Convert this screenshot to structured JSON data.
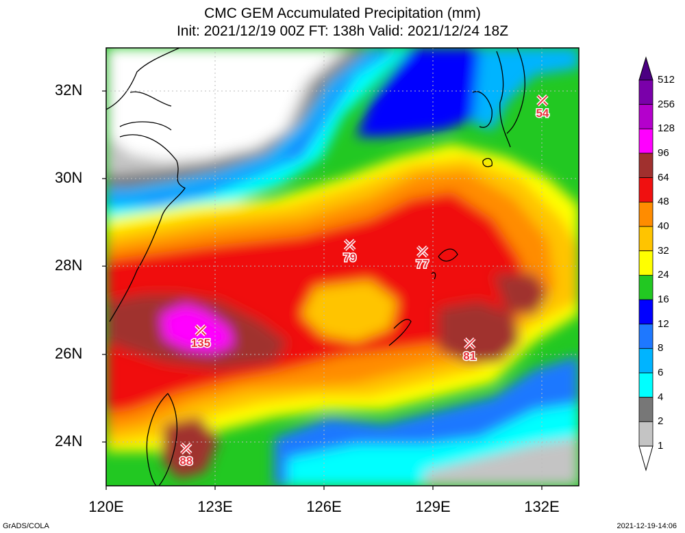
{
  "title_line1": "CMC GEM Accumulated Precipitation (mm)",
  "title_line2": "Init: 2021/12/19 00Z  FT: 138h  Valid: 2021/12/24 18Z",
  "lat_labels": [
    "32N",
    "30N",
    "28N",
    "26N",
    "24N"
  ],
  "lat_values": [
    32,
    30,
    28,
    26,
    24
  ],
  "lon_labels": [
    "120E",
    "123E",
    "126E",
    "129E",
    "132E"
  ],
  "lon_values": [
    120,
    123,
    126,
    129,
    132
  ],
  "extent": {
    "lon": [
      120,
      133
    ],
    "lat": [
      23,
      33
    ]
  },
  "colorbar": {
    "levels": [
      "512",
      "256",
      "128",
      "96",
      "64",
      "48",
      "40",
      "32",
      "24",
      "16",
      "12",
      "8",
      "6",
      "4",
      "2",
      "1"
    ],
    "colors": [
      "#4b0082",
      "#7a00aa",
      "#b400cc",
      "#ff00ff",
      "#a0302e",
      "#f01010",
      "#ff8c00",
      "#ffc400",
      "#ffff00",
      "#22c822",
      "#0000ff",
      "#1e78ff",
      "#00b4ff",
      "#00ffff",
      "#777777",
      "#c4c4c4",
      "#ffffff"
    ]
  },
  "markers": [
    {
      "label": "135",
      "lon": 122.6,
      "lat": 26.55
    },
    {
      "label": "79",
      "lon": 126.7,
      "lat": 28.5
    },
    {
      "label": "77",
      "lon": 128.7,
      "lat": 28.35
    },
    {
      "label": "81",
      "lon": 130.0,
      "lat": 26.25
    },
    {
      "label": "54",
      "lon": 132.0,
      "lat": 31.8
    },
    {
      "label": "88",
      "lon": 122.2,
      "lat": 23.85
    }
  ],
  "footer_left": "GrADS/COLA",
  "footer_right": "2021-12-19-14:06"
}
